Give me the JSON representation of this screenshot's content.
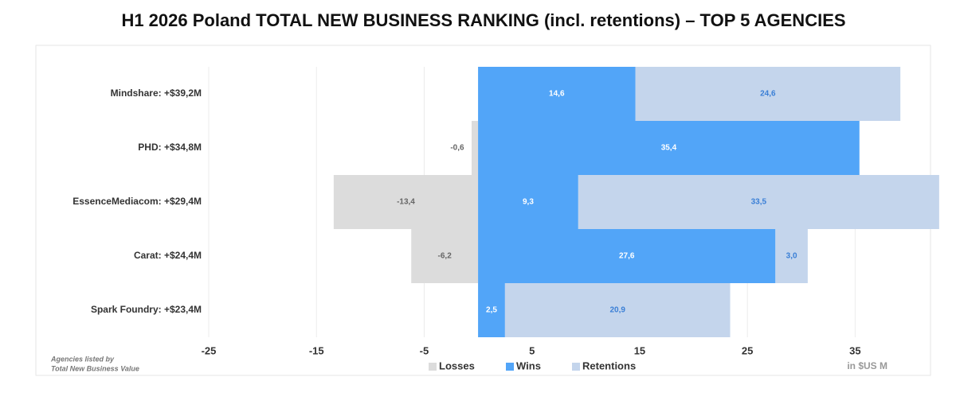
{
  "chart_data": {
    "type": "diverging_stacked_bar",
    "title": "H1 2026 Poland TOTAL NEW BUSINESS RANKING (incl. retentions) – TOP 5 AGENCIES",
    "categories": [
      "Mindshare: +$39,2M",
      "PHD: +$34,8M",
      "EssenceMediacom: +$29,4M",
      "Carat: +$24,4M",
      "Spark Foundry: +$23,4M"
    ],
    "series": [
      {
        "name": "Losses",
        "color": "#dcdcdc",
        "values": [
          null,
          -0.6,
          -13.4,
          -6.2,
          null
        ],
        "value_labels": [
          null,
          "-0,6",
          "-13,4",
          "-6,2",
          null
        ]
      },
      {
        "name": "Wins",
        "color": "#52a5f8",
        "values": [
          14.6,
          35.4,
          9.3,
          27.6,
          2.5
        ],
        "value_labels": [
          "14,6",
          "35,4",
          "9,3",
          "27,6",
          "2,5"
        ]
      },
      {
        "name": "Retentions",
        "color": "#c4d5ec",
        "values": [
          24.6,
          null,
          33.5,
          3.0,
          20.9
        ],
        "value_labels": [
          "24,6",
          null,
          "33,5",
          "3,0",
          "20,9"
        ]
      }
    ],
    "xlim": [
      -25,
      40
    ],
    "xticks": [
      -25,
      -15,
      -5,
      5,
      15,
      25,
      35
    ],
    "grid": true,
    "x_unit": "in $US M",
    "footnote": [
      "Agencies listed  by",
      "Total New Business Value"
    ]
  }
}
